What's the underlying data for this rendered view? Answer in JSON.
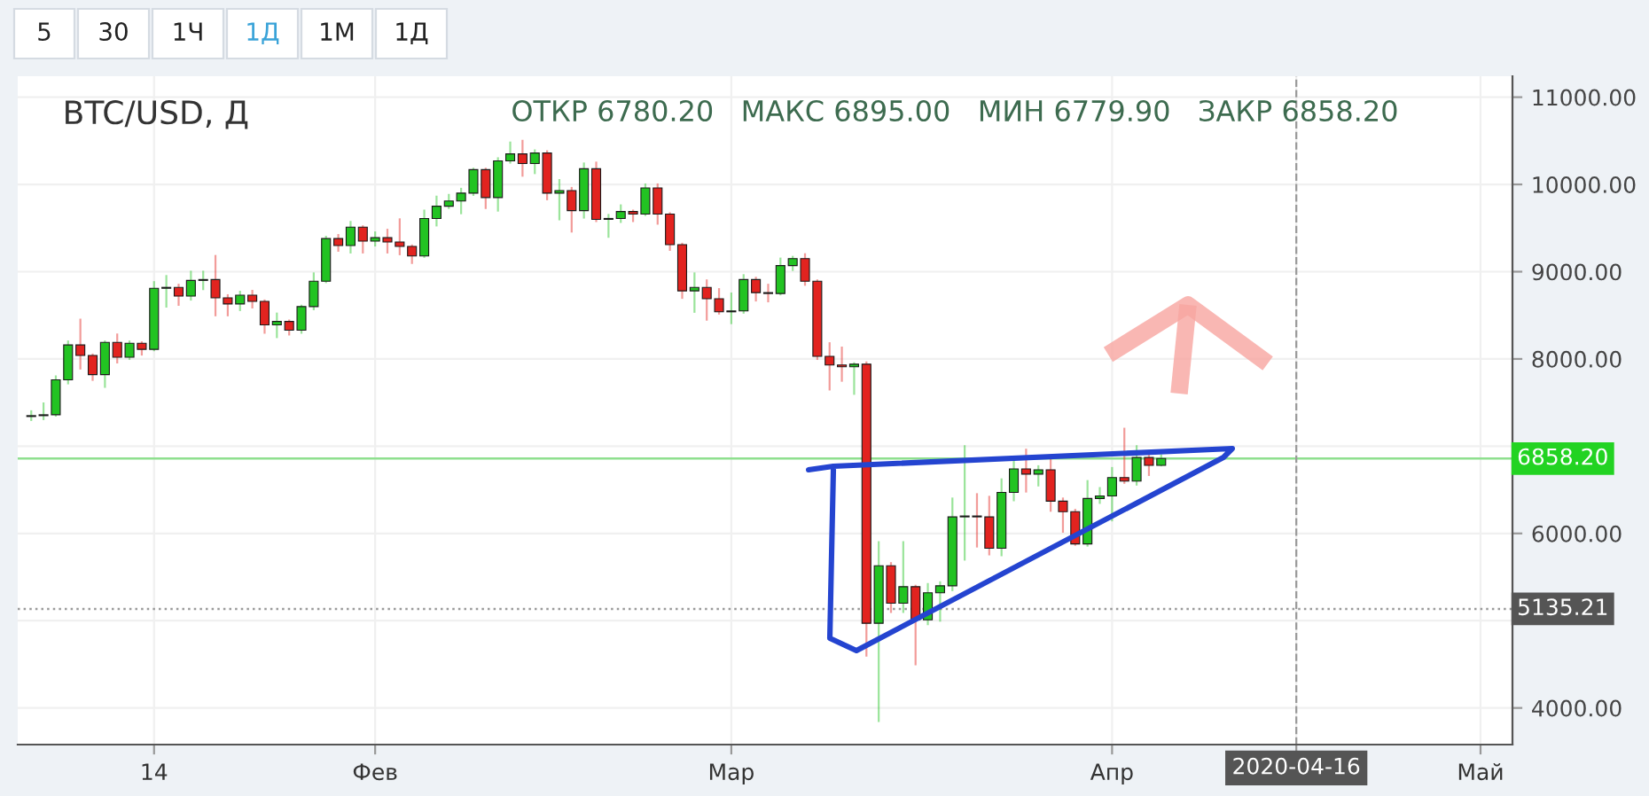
{
  "chart_data": {
    "type": "candlestick",
    "title": "BTC/USD, Д",
    "subtitle": "ОТКР 6780.20   МАКС 6895.00   МИН 6779.90   ЗАКР 6858.20",
    "annotations": [
      "5",
      "30",
      "1Ч",
      "1Д",
      "1М",
      "1Д"
    ],
    "categories": [
      null,
      null,
      null,
      null,
      null,
      null,
      null,
      null,
      null,
      null,
      "14",
      null,
      null,
      null,
      null,
      null,
      null,
      null,
      null,
      null,
      null,
      null,
      null,
      null,
      null,
      null,
      null,
      null,
      "Фев",
      null,
      null,
      null,
      null,
      null,
      null,
      null,
      null,
      null,
      null,
      null,
      null,
      null,
      null,
      null,
      null,
      null,
      null,
      null,
      null,
      null,
      null,
      null,
      null,
      null,
      null,
      null,
      null,
      "Мар",
      null,
      null,
      null,
      null,
      null,
      null,
      null,
      null,
      null,
      null,
      null,
      null,
      null,
      null,
      null,
      null,
      null,
      null,
      null,
      null,
      null,
      null,
      null,
      null,
      null,
      null,
      null,
      null,
      null,
      null,
      "Апр",
      null,
      null,
      null,
      null,
      null,
      null,
      null,
      null,
      null,
      null,
      null,
      null,
      null,
      null,
      "2020-04-16",
      null,
      null,
      null,
      null,
      null,
      null,
      null,
      null,
      null,
      null,
      null,
      null,
      null,
      null,
      "Май",
      null,
      null
    ],
    "ohlc": [
      [
        7340,
        7400,
        7300,
        7350
      ],
      [
        7350,
        7490,
        7310,
        7360
      ],
      [
        7360,
        7800,
        7350,
        7760
      ],
      [
        7760,
        8200,
        7720,
        8160
      ],
      [
        8160,
        8450,
        7890,
        8040
      ],
      [
        8040,
        8050,
        7760,
        7820
      ],
      [
        7820,
        8200,
        7680,
        8190
      ],
      [
        8190,
        8280,
        7960,
        8020
      ],
      [
        8020,
        8200,
        8000,
        8180
      ],
      [
        8180,
        8190,
        8050,
        8110
      ],
      [
        8110,
        8880,
        8100,
        8810
      ],
      [
        8810,
        8950,
        8600,
        8820
      ],
      [
        8820,
        8850,
        8620,
        8720
      ],
      [
        8720,
        9000,
        8680,
        8900
      ],
      [
        8900,
        9000,
        8800,
        8910
      ],
      [
        8910,
        9180,
        8500,
        8700
      ],
      [
        8700,
        8730,
        8500,
        8630
      ],
      [
        8630,
        8770,
        8560,
        8730
      ],
      [
        8730,
        8780,
        8590,
        8660
      ],
      [
        8660,
        8670,
        8300,
        8390
      ],
      [
        8390,
        8520,
        8250,
        8430
      ],
      [
        8430,
        8440,
        8280,
        8330
      ],
      [
        8330,
        8610,
        8300,
        8600
      ],
      [
        8600,
        8980,
        8570,
        8890
      ],
      [
        8890,
        9400,
        8880,
        9380
      ],
      [
        9380,
        9420,
        9240,
        9300
      ],
      [
        9300,
        9570,
        9220,
        9510
      ],
      [
        9510,
        9520,
        9220,
        9350
      ],
      [
        9350,
        9450,
        9300,
        9390
      ],
      [
        9390,
        9480,
        9220,
        9340
      ],
      [
        9340,
        9600,
        9200,
        9290
      ],
      [
        9290,
        9300,
        9100,
        9180
      ],
      [
        9180,
        9700,
        9170,
        9610
      ],
      [
        9610,
        9860,
        9530,
        9750
      ],
      [
        9750,
        9880,
        9730,
        9810
      ],
      [
        9810,
        9950,
        9670,
        9900
      ],
      [
        9900,
        10180,
        9880,
        10170
      ],
      [
        10170,
        10180,
        9730,
        9850
      ],
      [
        9850,
        10300,
        9700,
        10270
      ],
      [
        10270,
        10480,
        10250,
        10350
      ],
      [
        10350,
        10500,
        10100,
        10240
      ],
      [
        10240,
        10390,
        10130,
        10360
      ],
      [
        10360,
        10380,
        9830,
        9900
      ],
      [
        9900,
        10050,
        9600,
        9930
      ],
      [
        9930,
        9960,
        9460,
        9700
      ],
      [
        9700,
        10240,
        9620,
        10180
      ],
      [
        10180,
        10250,
        9580,
        9600
      ],
      [
        9600,
        9650,
        9400,
        9610
      ],
      [
        9610,
        9760,
        9570,
        9690
      ],
      [
        9690,
        9700,
        9580,
        9660
      ],
      [
        9660,
        10000,
        9650,
        9960
      ],
      [
        9960,
        10000,
        9550,
        9660
      ],
      [
        9660,
        9670,
        9250,
        9310
      ],
      [
        9310,
        9320,
        8700,
        8780
      ],
      [
        8780,
        8980,
        8540,
        8820
      ],
      [
        8820,
        8900,
        8450,
        8690
      ],
      [
        8690,
        8800,
        8520,
        8540
      ],
      [
        8540,
        8750,
        8410,
        8550
      ],
      [
        8550,
        8960,
        8530,
        8910
      ],
      [
        8910,
        8930,
        8670,
        8760
      ],
      [
        8760,
        8850,
        8660,
        8750
      ],
      [
        8750,
        9150,
        8740,
        9070
      ],
      [
        9070,
        9170,
        9020,
        9150
      ],
      [
        9150,
        9200,
        8850,
        8890
      ],
      [
        8890,
        8900,
        8000,
        8030
      ],
      [
        8030,
        8180,
        7650,
        7930
      ],
      [
        7930,
        8130,
        7750,
        7910
      ],
      [
        7910,
        7950,
        7600,
        7940
      ],
      [
        7940,
        7960,
        4600,
        4970
      ],
      [
        4970,
        5900,
        3850,
        5630
      ],
      [
        5630,
        5660,
        5100,
        5200
      ],
      [
        5200,
        5900,
        5100,
        5390
      ],
      [
        5390,
        5400,
        4500,
        5010
      ],
      [
        5010,
        5420,
        4960,
        5320
      ],
      [
        5320,
        5440,
        5000,
        5400
      ],
      [
        5400,
        6400,
        5350,
        6190
      ],
      [
        6190,
        7000,
        5700,
        6200
      ],
      [
        6200,
        6450,
        5850,
        6190
      ],
      [
        6190,
        6420,
        5760,
        5830
      ],
      [
        5830,
        6620,
        5750,
        6470
      ],
      [
        6470,
        6850,
        6380,
        6740
      ],
      [
        6740,
        6960,
        6480,
        6680
      ],
      [
        6680,
        6770,
        6550,
        6730
      ],
      [
        6730,
        6870,
        6260,
        6370
      ],
      [
        6370,
        6400,
        6020,
        6250
      ],
      [
        6250,
        6270,
        5870,
        5880
      ],
      [
        5880,
        6600,
        5860,
        6400
      ],
      [
        6400,
        6520,
        6350,
        6430
      ],
      [
        6430,
        6750,
        6150,
        6640
      ],
      [
        6640,
        7200,
        6580,
        6600
      ],
      [
        6600,
        7000,
        6560,
        6870
      ],
      [
        6870,
        6920,
        6670,
        6780
      ],
      [
        6780.2,
        6895,
        6779.9,
        6858.2
      ],
      null,
      null,
      null,
      null,
      null,
      null,
      null,
      null,
      null,
      null,
      null,
      null,
      null,
      null,
      null,
      null,
      null,
      null,
      null,
      null,
      null,
      null,
      null,
      null,
      null,
      null,
      null,
      null
    ],
    "colors": [
      "#22c322",
      "#22c322",
      "#22c322",
      "#22c322",
      "#e2231f",
      "#e2231f",
      "#22c322",
      "#e2231f",
      "#22c322",
      "#e2231f",
      "#22c322",
      "#22c322",
      "#e2231f",
      "#22c322",
      "#22c322",
      "#e2231f",
      "#e2231f",
      "#22c322",
      "#e2231f",
      "#e2231f",
      "#22c322",
      "#e2231f",
      "#22c322",
      "#22c322",
      "#22c322",
      "#e2231f",
      "#22c322",
      "#e2231f",
      "#22c322",
      "#e2231f",
      "#e2231f",
      "#e2231f",
      "#22c322",
      "#22c322",
      "#22c322",
      "#22c322",
      "#22c322",
      "#e2231f",
      "#22c322",
      "#22c322",
      "#e2231f",
      "#22c322",
      "#e2231f",
      "#22c322",
      "#e2231f",
      "#22c322",
      "#e2231f",
      "#22c322",
      "#22c322",
      "#e2231f",
      "#22c322",
      "#e2231f",
      "#e2231f",
      "#e2231f",
      "#22c322",
      "#e2231f",
      "#e2231f",
      "#22c322",
      "#22c322",
      "#e2231f",
      "#e2231f",
      "#22c322",
      "#22c322",
      "#e2231f",
      "#e2231f",
      "#e2231f",
      "#e2231f",
      "#22c322",
      "#e2231f",
      "#22c322",
      "#e2231f",
      "#22c322",
      "#e2231f",
      "#22c322",
      "#22c322",
      "#22c322",
      "#22c322",
      "#e2231f",
      "#e2231f",
      "#22c322",
      "#22c322",
      "#e2231f",
      "#22c322",
      "#e2231f",
      "#e2231f",
      "#e2231f",
      "#22c322",
      "#22c322",
      "#22c322",
      "#e2231f",
      "#22c322",
      "#e2231f",
      "#22c322",
      null,
      null,
      null,
      null,
      null,
      null,
      null,
      null,
      null,
      null,
      null,
      null,
      null,
      null,
      null,
      null,
      null,
      null,
      null,
      null,
      null,
      null,
      null,
      null,
      null,
      null,
      null,
      null
    ],
    "ylim": [
      3580,
      11240
    ],
    "yticks": [
      {
        "value": 4000,
        "label": "4000.00"
      },
      {
        "value": 5000,
        "label": null
      },
      {
        "value": 6000,
        "label": "6000.00"
      },
      {
        "value": 7000,
        "label": null
      },
      {
        "value": 8000,
        "label": "8000.00"
      },
      {
        "value": 9000,
        "label": "9000.00"
      },
      {
        "value": 10000,
        "label": "10000.00"
      },
      {
        "value": 11000,
        "label": "11000.00"
      }
    ],
    "ref_lines": [
      {
        "axis": "y",
        "value": 6858.2,
        "label": "6858.20",
        "color": "#8fe08f",
        "line_style": "solid"
      },
      {
        "axis": "y",
        "value": 5135.21,
        "label": "5135.21",
        "color": "#9a9a9a",
        "line_style": "dotted"
      },
      {
        "axis": "x",
        "value": "2020-04-16",
        "label": "2020-04-16",
        "color": "#9a9a9a",
        "line_style": "dashed"
      }
    ],
    "grid": true
  }
}
